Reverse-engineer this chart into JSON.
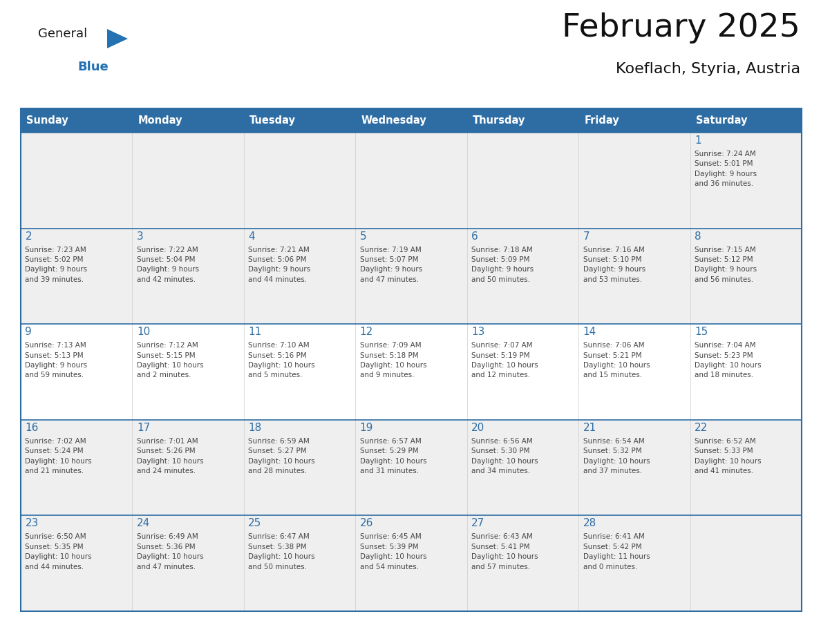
{
  "title": "February 2025",
  "subtitle": "Koeflach, Styria, Austria",
  "header_color": "#2E6DA4",
  "header_text_color": "#FFFFFF",
  "days_of_week": [
    "Sunday",
    "Monday",
    "Tuesday",
    "Wednesday",
    "Thursday",
    "Friday",
    "Saturday"
  ],
  "background_color": "#FFFFFF",
  "cell_bg_light": "#EFEFEF",
  "cell_bg_white": "#FFFFFF",
  "border_color": "#2E6DA4",
  "day_num_color": "#2E6DA4",
  "text_color": "#444444",
  "logo_general_color": "#1a1a1a",
  "logo_blue_color": "#2472B3",
  "weeks": [
    [
      {
        "day": null,
        "info": null
      },
      {
        "day": null,
        "info": null
      },
      {
        "day": null,
        "info": null
      },
      {
        "day": null,
        "info": null
      },
      {
        "day": null,
        "info": null
      },
      {
        "day": null,
        "info": null
      },
      {
        "day": 1,
        "info": "Sunrise: 7:24 AM\nSunset: 5:01 PM\nDaylight: 9 hours\nand 36 minutes."
      }
    ],
    [
      {
        "day": 2,
        "info": "Sunrise: 7:23 AM\nSunset: 5:02 PM\nDaylight: 9 hours\nand 39 minutes."
      },
      {
        "day": 3,
        "info": "Sunrise: 7:22 AM\nSunset: 5:04 PM\nDaylight: 9 hours\nand 42 minutes."
      },
      {
        "day": 4,
        "info": "Sunrise: 7:21 AM\nSunset: 5:06 PM\nDaylight: 9 hours\nand 44 minutes."
      },
      {
        "day": 5,
        "info": "Sunrise: 7:19 AM\nSunset: 5:07 PM\nDaylight: 9 hours\nand 47 minutes."
      },
      {
        "day": 6,
        "info": "Sunrise: 7:18 AM\nSunset: 5:09 PM\nDaylight: 9 hours\nand 50 minutes."
      },
      {
        "day": 7,
        "info": "Sunrise: 7:16 AM\nSunset: 5:10 PM\nDaylight: 9 hours\nand 53 minutes."
      },
      {
        "day": 8,
        "info": "Sunrise: 7:15 AM\nSunset: 5:12 PM\nDaylight: 9 hours\nand 56 minutes."
      }
    ],
    [
      {
        "day": 9,
        "info": "Sunrise: 7:13 AM\nSunset: 5:13 PM\nDaylight: 9 hours\nand 59 minutes."
      },
      {
        "day": 10,
        "info": "Sunrise: 7:12 AM\nSunset: 5:15 PM\nDaylight: 10 hours\nand 2 minutes."
      },
      {
        "day": 11,
        "info": "Sunrise: 7:10 AM\nSunset: 5:16 PM\nDaylight: 10 hours\nand 5 minutes."
      },
      {
        "day": 12,
        "info": "Sunrise: 7:09 AM\nSunset: 5:18 PM\nDaylight: 10 hours\nand 9 minutes."
      },
      {
        "day": 13,
        "info": "Sunrise: 7:07 AM\nSunset: 5:19 PM\nDaylight: 10 hours\nand 12 minutes."
      },
      {
        "day": 14,
        "info": "Sunrise: 7:06 AM\nSunset: 5:21 PM\nDaylight: 10 hours\nand 15 minutes."
      },
      {
        "day": 15,
        "info": "Sunrise: 7:04 AM\nSunset: 5:23 PM\nDaylight: 10 hours\nand 18 minutes."
      }
    ],
    [
      {
        "day": 16,
        "info": "Sunrise: 7:02 AM\nSunset: 5:24 PM\nDaylight: 10 hours\nand 21 minutes."
      },
      {
        "day": 17,
        "info": "Sunrise: 7:01 AM\nSunset: 5:26 PM\nDaylight: 10 hours\nand 24 minutes."
      },
      {
        "day": 18,
        "info": "Sunrise: 6:59 AM\nSunset: 5:27 PM\nDaylight: 10 hours\nand 28 minutes."
      },
      {
        "day": 19,
        "info": "Sunrise: 6:57 AM\nSunset: 5:29 PM\nDaylight: 10 hours\nand 31 minutes."
      },
      {
        "day": 20,
        "info": "Sunrise: 6:56 AM\nSunset: 5:30 PM\nDaylight: 10 hours\nand 34 minutes."
      },
      {
        "day": 21,
        "info": "Sunrise: 6:54 AM\nSunset: 5:32 PM\nDaylight: 10 hours\nand 37 minutes."
      },
      {
        "day": 22,
        "info": "Sunrise: 6:52 AM\nSunset: 5:33 PM\nDaylight: 10 hours\nand 41 minutes."
      }
    ],
    [
      {
        "day": 23,
        "info": "Sunrise: 6:50 AM\nSunset: 5:35 PM\nDaylight: 10 hours\nand 44 minutes."
      },
      {
        "day": 24,
        "info": "Sunrise: 6:49 AM\nSunset: 5:36 PM\nDaylight: 10 hours\nand 47 minutes."
      },
      {
        "day": 25,
        "info": "Sunrise: 6:47 AM\nSunset: 5:38 PM\nDaylight: 10 hours\nand 50 minutes."
      },
      {
        "day": 26,
        "info": "Sunrise: 6:45 AM\nSunset: 5:39 PM\nDaylight: 10 hours\nand 54 minutes."
      },
      {
        "day": 27,
        "info": "Sunrise: 6:43 AM\nSunset: 5:41 PM\nDaylight: 10 hours\nand 57 minutes."
      },
      {
        "day": 28,
        "info": "Sunrise: 6:41 AM\nSunset: 5:42 PM\nDaylight: 11 hours\nand 0 minutes."
      },
      {
        "day": null,
        "info": null
      }
    ]
  ]
}
